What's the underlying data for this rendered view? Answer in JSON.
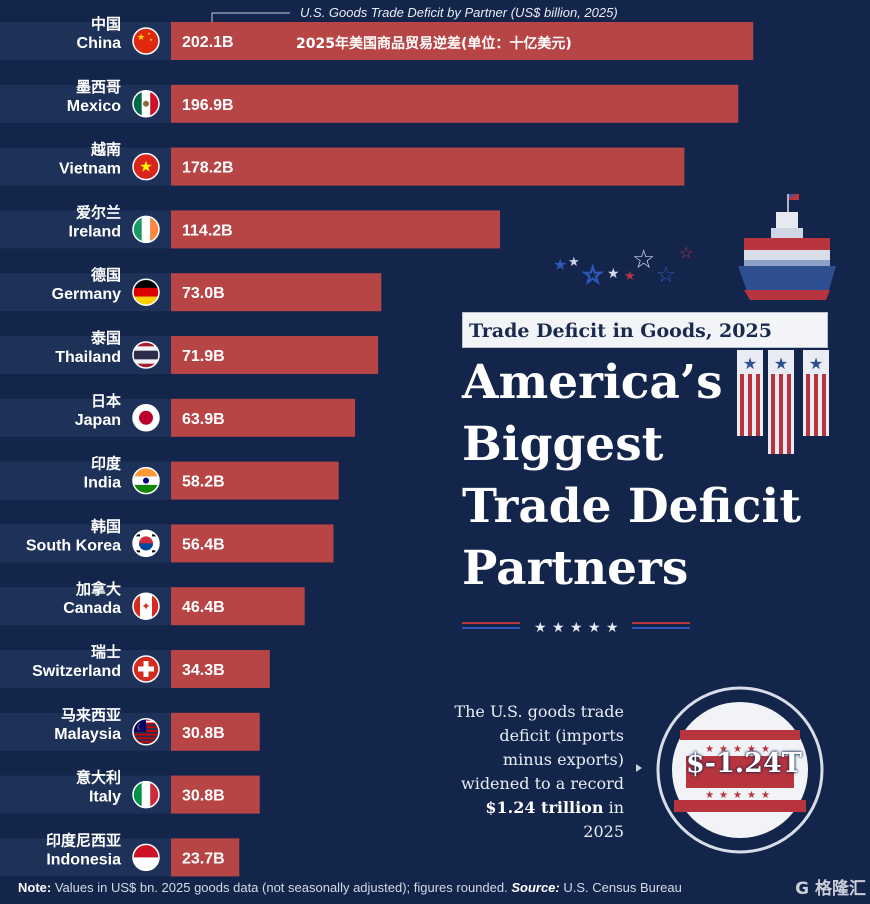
{
  "chart_data": {
    "type": "bar",
    "orientation": "horizontal",
    "title": "U.S. Goods Trade Deficit by Partner (US$ billion, 2025)",
    "subtitle_cn": "2025年美国商品贸易逆差(单位：十亿美元)",
    "value_suffix": "B",
    "categories": [
      "China",
      "Mexico",
      "Vietnam",
      "Ireland",
      "Germany",
      "Thailand",
      "Japan",
      "India",
      "South Korea",
      "Canada",
      "Switzerland",
      "Malaysia",
      "Italy",
      "Indonesia"
    ],
    "categories_cn": [
      "中国",
      "墨西哥",
      "越南",
      "爱尔兰",
      "德国",
      "泰国",
      "日本",
      "印度",
      "韩国",
      "加拿大",
      "瑞士",
      "马来西亚",
      "意大利",
      "印度尼西亚"
    ],
    "values": [
      202.1,
      196.9,
      178.2,
      114.2,
      73.0,
      71.9,
      63.9,
      58.2,
      56.4,
      46.4,
      34.3,
      30.8,
      30.8,
      23.7
    ],
    "value_labels": [
      "202.1B",
      "196.9B",
      "178.2B",
      "114.2B",
      "73.0B",
      "71.9B",
      "63.9B",
      "58.2B",
      "56.4B",
      "46.4B",
      "34.3B",
      "30.8B",
      "30.8B",
      "23.7B"
    ],
    "flag_icons": [
      "china-flag-icon",
      "mexico-flag-icon",
      "vietnam-flag-icon",
      "ireland-flag-icon",
      "germany-flag-icon",
      "thailand-flag-icon",
      "japan-flag-icon",
      "india-flag-icon",
      "south-korea-flag-icon",
      "canada-flag-icon",
      "switzerland-flag-icon",
      "malaysia-flag-icon",
      "italy-flag-icon",
      "indonesia-flag-icon"
    ],
    "xlim": [
      0,
      210
    ],
    "grid": false
  },
  "infographic": {
    "badge": "Trade Deficit in Goods, 2025",
    "headline_lines": [
      "America’s",
      "Biggest",
      "Trade Deficit",
      "Partners"
    ],
    "callout_lines": [
      "The U.S. goods trade",
      "deficit (imports",
      "minus exports)",
      "widened to a record"
    ],
    "callout_bold": "$1.24 trillion",
    "callout_after_bold": " in",
    "callout_last": "2025",
    "big_value": "$-1.24T"
  },
  "footnote": {
    "note_label": "Note:",
    "note_text": " Values in US$ bn. 2025 goods data (not seasonally adjusted); figures rounded. ",
    "source_label": "Source:",
    "source_text": " U.S. Census Bureau"
  },
  "watermark": "G 格隆汇",
  "colors": {
    "background": "#13254a",
    "bar": "#b84545",
    "label_panel": "#1e3259",
    "accent_red": "#b8343e",
    "white": "#ffffff"
  }
}
